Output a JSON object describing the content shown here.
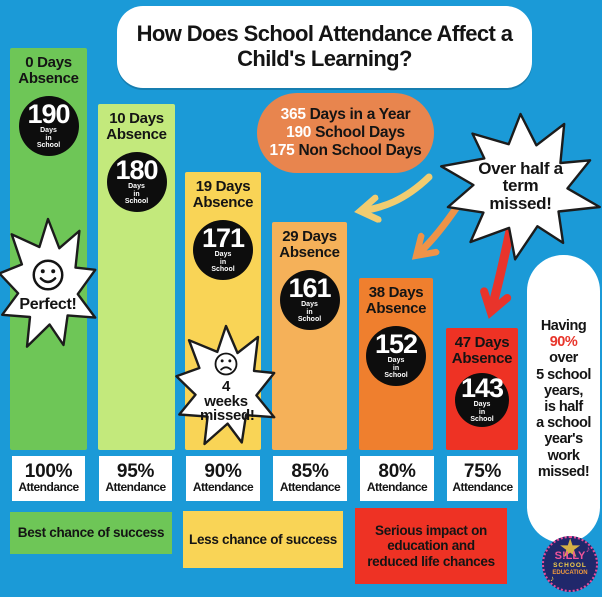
{
  "title": "How Does School Attendance Affect a Child's Learning?",
  "info_bubble": {
    "color": "#e8854e",
    "items": [
      {
        "number": "365",
        "label": "Days in a Year"
      },
      {
        "number": "190",
        "label": "School Days"
      },
      {
        "number": "175",
        "label": "Non School Days"
      }
    ]
  },
  "bars": [
    {
      "absence": "0 Days Absence",
      "days_in_school": "190",
      "unit": "Days in School",
      "attendance_value": "100%",
      "attendance_label": "Attendance",
      "color": "#6ec657"
    },
    {
      "absence": "10 Days Absence",
      "days_in_school": "180",
      "unit": "Days in School",
      "attendance_value": "95%",
      "attendance_label": "Attendance",
      "color": "#c3e97c"
    },
    {
      "absence": "19 Days Absence",
      "days_in_school": "171",
      "unit": "Days in School",
      "attendance_value": "90%",
      "attendance_label": "Attendance",
      "color": "#f9d456"
    },
    {
      "absence": "29 Days Absence",
      "days_in_school": "161",
      "unit": "Days in School",
      "attendance_value": "85%",
      "attendance_label": "Attendance",
      "color": "#f5b159"
    },
    {
      "absence": "38 Days Absence",
      "days_in_school": "152",
      "unit": "Days in School",
      "attendance_value": "80%",
      "attendance_label": "Attendance",
      "color": "#ef7f2e"
    },
    {
      "absence": "47 Days Absence",
      "days_in_school": "143",
      "unit": "Days in School",
      "attendance_value": "75%",
      "attendance_label": "Attendance",
      "color": "#ee3224"
    }
  ],
  "callouts": {
    "perfect": {
      "text": "Perfect!",
      "face": "happy"
    },
    "four_weeks": {
      "text": "4 weeks missed!",
      "face": "sad"
    },
    "half_term": {
      "text": "Over half a term missed!"
    },
    "side_note": {
      "lines": [
        "Having",
        "90%",
        "over",
        "5 school",
        "years,",
        "is half",
        "a school",
        "year's",
        "work",
        "missed!"
      ],
      "highlight_index": 1,
      "highlight_color": "#e8352b"
    }
  },
  "banners": [
    {
      "text": "Best chance of success",
      "color": "#6ec657"
    },
    {
      "text": "Less chance of success",
      "color": "#f9d456"
    },
    {
      "text": "Serious impact on education and reduced life chances",
      "color": "#ee3224"
    }
  ],
  "logo": {
    "top": "S!LLY",
    "mid": "SCHOOL",
    "bottom": "EDUCATION"
  },
  "colors": {
    "background": "#1b9ad7",
    "arrow_yellow": "#f1cc70",
    "arrow_orange": "#ee9348",
    "arrow_red": "#e8342b",
    "circle_bg": "#0d0d0d"
  },
  "chart_data": {
    "type": "bar",
    "title": "How Does School Attendance Affect a Child's Learning?",
    "categories": [
      "0 Days Absence",
      "10 Days Absence",
      "19 Days Absence",
      "29 Days Absence",
      "38 Days Absence",
      "47 Days Absence"
    ],
    "values": [
      190,
      180,
      171,
      161,
      152,
      143
    ],
    "value_unit": "Days in School",
    "attendance_pct": [
      100,
      95,
      90,
      85,
      80,
      75
    ],
    "bar_colors": [
      "#6ec657",
      "#c3e97c",
      "#f9d456",
      "#f5b159",
      "#ef7f2e",
      "#ee3224"
    ],
    "group_labels": [
      "Best chance of success",
      "Less chance of success",
      "Serious impact on education and reduced life chances"
    ],
    "annotations": [
      "365 Days in a Year",
      "190 School Days",
      "175 Non School Days",
      "Perfect!",
      "4 weeks missed!",
      "Over half a term missed!",
      "Having 90% over 5 school years, is half a school year's work missed!"
    ],
    "legend": "none",
    "grid": false
  }
}
